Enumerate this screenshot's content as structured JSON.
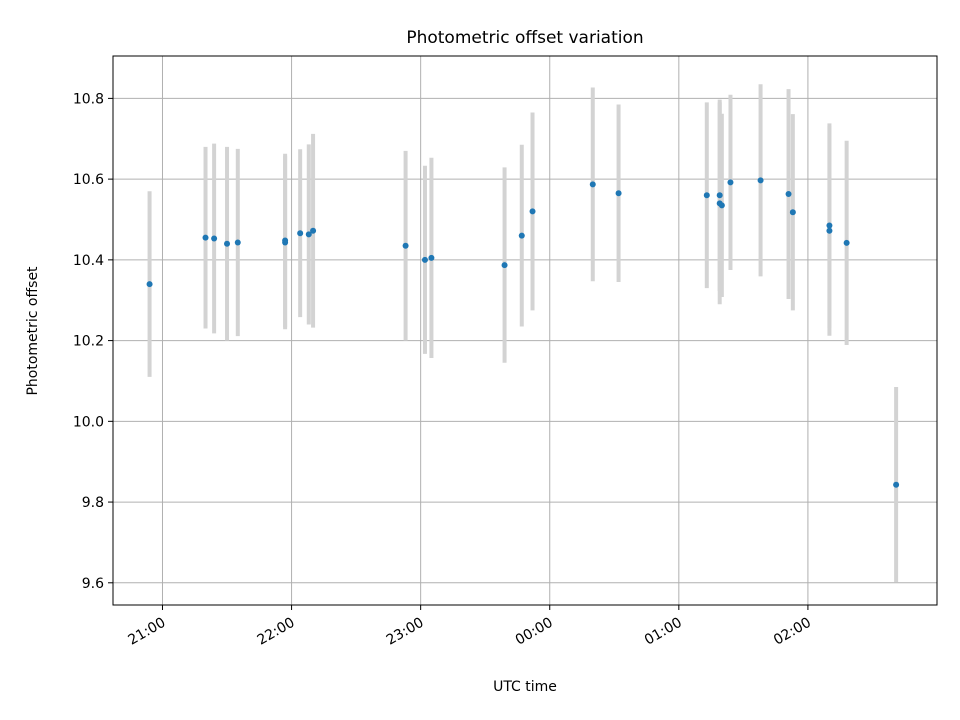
{
  "chart_data": {
    "type": "scatter",
    "title": "Photometric offset variation",
    "xlabel": "UTC time",
    "ylabel": "Photometric offset",
    "x_axis_kind": "time",
    "x_range": [
      "20:37",
      "03:00"
    ],
    "ylim": [
      9.545,
      10.905
    ],
    "grid": true,
    "colors": {
      "points": "#1f77b4",
      "errorbars": "#d3d3d3",
      "grid": "#b0b0b0"
    },
    "x_ticks": [
      "21:00",
      "22:00",
      "23:00",
      "00:00",
      "01:00",
      "02:00"
    ],
    "y_ticks": [
      "9.6",
      "9.8",
      "10.0",
      "10.2",
      "10.4",
      "10.6",
      "10.8"
    ],
    "points": [
      {
        "time": "20:54",
        "y": 10.34,
        "yerr": 0.23
      },
      {
        "time": "21:20",
        "y": 10.455,
        "yerr": 0.225
      },
      {
        "time": "21:24",
        "y": 10.453,
        "yerr": 0.235
      },
      {
        "time": "21:30",
        "y": 10.44,
        "yerr": 0.24
      },
      {
        "time": "21:35",
        "y": 10.443,
        "yerr": 0.232
      },
      {
        "time": "21:57",
        "y": 10.443,
        "yerr": 0.215
      },
      {
        "time": "21:57",
        "y": 10.448,
        "yerr": 0.215
      },
      {
        "time": "22:04",
        "y": 10.466,
        "yerr": 0.208
      },
      {
        "time": "22:08",
        "y": 10.463,
        "yerr": 0.223
      },
      {
        "time": "22:10",
        "y": 10.472,
        "yerr": 0.24
      },
      {
        "time": "22:53",
        "y": 10.435,
        "yerr": 0.235
      },
      {
        "time": "23:02",
        "y": 10.4,
        "yerr": 0.233
      },
      {
        "time": "23:05",
        "y": 10.405,
        "yerr": 0.248
      },
      {
        "time": "23:39",
        "y": 10.387,
        "yerr": 0.242
      },
      {
        "time": "23:47",
        "y": 10.46,
        "yerr": 0.225
      },
      {
        "time": "23:52",
        "y": 10.52,
        "yerr": 0.245
      },
      {
        "time": "00:20",
        "y": 10.587,
        "yerr": 0.24
      },
      {
        "time": "00:32",
        "y": 10.565,
        "yerr": 0.22
      },
      {
        "time": "01:13",
        "y": 10.56,
        "yerr": 0.23
      },
      {
        "time": "01:19",
        "y": 10.56,
        "yerr": 0.237
      },
      {
        "time": "01:19",
        "y": 10.54,
        "yerr": 0.25
      },
      {
        "time": "01:20",
        "y": 10.535,
        "yerr": 0.227
      },
      {
        "time": "01:24",
        "y": 10.592,
        "yerr": 0.217
      },
      {
        "time": "01:38",
        "y": 10.597,
        "yerr": 0.238
      },
      {
        "time": "01:51",
        "y": 10.563,
        "yerr": 0.26
      },
      {
        "time": "01:53",
        "y": 10.518,
        "yerr": 0.243
      },
      {
        "time": "02:10",
        "y": 10.485,
        "yerr": 0.253
      },
      {
        "time": "02:10",
        "y": 10.472,
        "yerr": 0.26
      },
      {
        "time": "02:18",
        "y": 10.442,
        "yerr": 0.253
      },
      {
        "time": "02:41",
        "y": 9.843,
        "yerr": 0.242
      }
    ]
  }
}
